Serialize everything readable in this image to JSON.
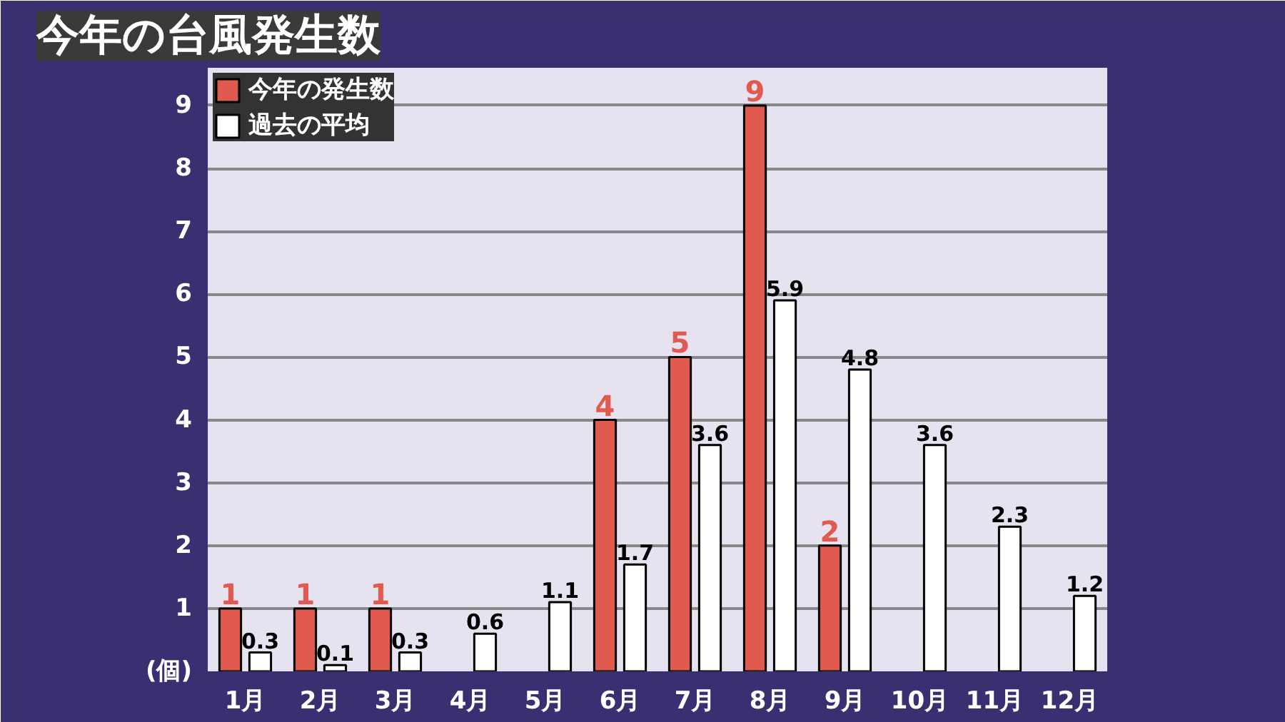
{
  "chart_data": {
    "type": "bar",
    "title": "今年の台風発生数",
    "categories": [
      "1月",
      "2月",
      "3月",
      "4月",
      "5月",
      "6月",
      "7月",
      "8月",
      "9月",
      "10月",
      "11月",
      "12月"
    ],
    "series": [
      {
        "name": "今年の発生数",
        "color": "#e05a50",
        "values": [
          1,
          1,
          1,
          null,
          null,
          4,
          5,
          9,
          2,
          null,
          null,
          null
        ],
        "value_labels": [
          "1",
          "1",
          "1",
          null,
          null,
          "4",
          "5",
          "9",
          "2",
          null,
          null,
          null
        ]
      },
      {
        "name": "過去の平均",
        "color": "#ffffff",
        "values": [
          0.3,
          0.1,
          0.3,
          0.6,
          1.1,
          1.7,
          3.6,
          5.9,
          4.8,
          3.6,
          2.3,
          1.2
        ],
        "value_labels": [
          "0.3",
          "0.1",
          "0.3",
          "0.6",
          "1.1",
          "1.7",
          "3.6",
          "5.9",
          "4.8",
          "3.6",
          "2.3",
          "1.2"
        ]
      }
    ],
    "ylim": [
      0,
      9.6
    ],
    "yticks": [
      {
        "value": 0,
        "label": "(個)"
      },
      1,
      2,
      3,
      4,
      5,
      6,
      7,
      8,
      9
    ],
    "grid": "y",
    "legend": "top left"
  }
}
